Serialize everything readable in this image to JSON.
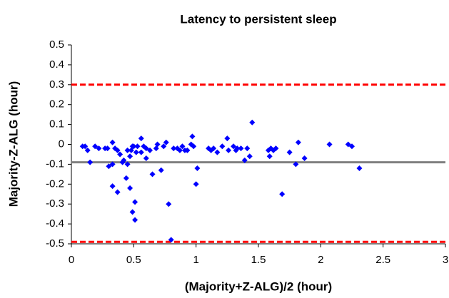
{
  "chart_data": {
    "type": "scatter",
    "title": "Latency to persistent sleep",
    "x_label": "(Majority+Z-ALG)/2 (hour)",
    "y_label": "Majority-Z-ALG (hour)",
    "xlim": [
      0,
      3
    ],
    "xticks": [
      0,
      0.5,
      1,
      1.5,
      2,
      2.5,
      3
    ],
    "ylim": [
      -0.5,
      0.5
    ],
    "yticks": [
      0.5,
      0.4,
      0.3,
      0.2,
      0.1,
      0,
      -0.1,
      -0.2,
      -0.3,
      -0.4,
      -0.5
    ],
    "grid": false,
    "color": "#0000ff",
    "reference_lines": [
      {
        "value": 0.3,
        "color": "#ff0000",
        "style": "dashed"
      },
      {
        "value": -0.09,
        "color": "#808080",
        "style": "solid"
      },
      {
        "value": -0.49,
        "color": "#ff0000",
        "style": "dashed"
      }
    ],
    "x": [
      0.09,
      0.11,
      0.13,
      0.15,
      0.19,
      0.22,
      0.27,
      0.29,
      0.3,
      0.33,
      0.33,
      0.35,
      0.33,
      0.37,
      0.37,
      0.39,
      0.41,
      0.42,
      0.44,
      0.45,
      0.45,
      0.47,
      0.47,
      0.48,
      0.49,
      0.49,
      0.5,
      0.51,
      0.51,
      0.52,
      0.53,
      0.56,
      0.56,
      0.58,
      0.6,
      0.6,
      0.63,
      0.65,
      0.68,
      0.69,
      0.72,
      0.74,
      0.76,
      0.78,
      0.8,
      0.82,
      0.85,
      0.87,
      0.89,
      0.91,
      0.93,
      0.96,
      0.97,
      0.98,
      1.0,
      1.01,
      1.1,
      1.12,
      1.14,
      1.17,
      1.21,
      1.25,
      1.26,
      1.3,
      1.32,
      1.33,
      1.36,
      1.39,
      1.41,
      1.43,
      1.45,
      1.58,
      1.59,
      1.6,
      1.62,
      1.64,
      1.69,
      1.75,
      1.8,
      1.82,
      1.87,
      2.07,
      2.22,
      2.25,
      2.31
    ],
    "values": [
      -0.01,
      -0.01,
      -0.03,
      -0.09,
      -0.01,
      -0.02,
      -0.02,
      -0.02,
      -0.11,
      0.01,
      -0.1,
      -0.02,
      -0.21,
      -0.24,
      -0.03,
      -0.05,
      -0.09,
      -0.08,
      -0.17,
      -0.1,
      -0.03,
      -0.06,
      -0.22,
      -0.03,
      -0.01,
      -0.34,
      -0.01,
      -0.38,
      -0.29,
      -0.04,
      -0.01,
      0.03,
      -0.04,
      -0.01,
      -0.07,
      -0.02,
      -0.03,
      -0.15,
      -0.02,
      0.0,
      -0.13,
      -0.01,
      0.01,
      -0.3,
      -0.48,
      -0.02,
      -0.02,
      -0.03,
      -0.01,
      -0.03,
      -0.03,
      0.0,
      0.04,
      -0.01,
      -0.2,
      -0.12,
      -0.02,
      -0.03,
      -0.02,
      -0.04,
      -0.01,
      0.03,
      -0.03,
      -0.01,
      -0.03,
      -0.02,
      -0.02,
      -0.08,
      -0.02,
      -0.06,
      0.11,
      -0.03,
      -0.06,
      -0.02,
      -0.03,
      -0.02,
      -0.25,
      -0.04,
      -0.1,
      0.01,
      -0.07,
      0.0,
      0.0,
      -0.01,
      -0.12
    ]
  }
}
